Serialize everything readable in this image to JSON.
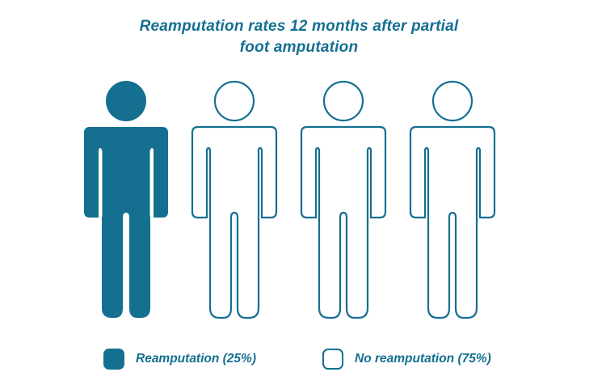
{
  "chart_data": {
    "type": "pictograph",
    "title_lines": [
      "Reamputation rates 12 months after partial",
      "foot amputation"
    ],
    "total_icons": 4,
    "series": [
      {
        "name": "Reamputation (25%)",
        "percent": 25,
        "icons": 1,
        "style": "filled"
      },
      {
        "name": "No reamputation (75%)",
        "percent": 75,
        "icons": 3,
        "style": "outline"
      }
    ],
    "colors": {
      "primary": "#156f91",
      "background": "#ffffff"
    }
  }
}
